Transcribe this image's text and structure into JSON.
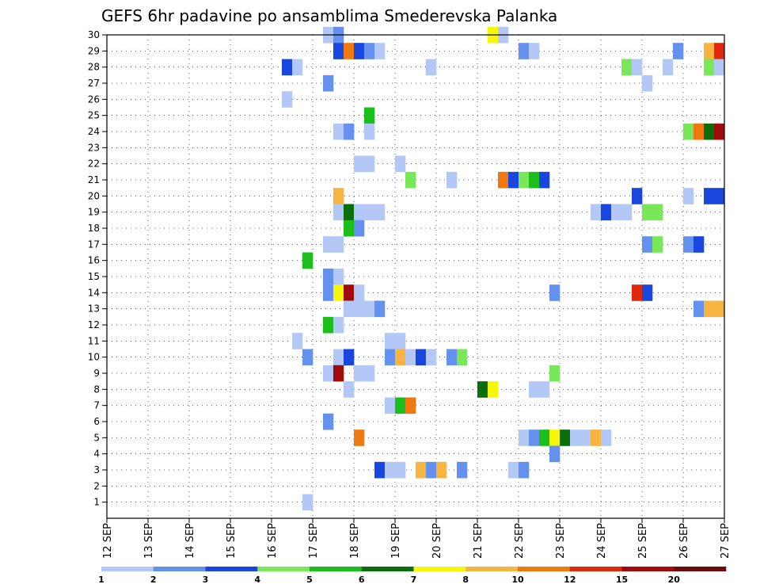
{
  "chart_data": {
    "type": "heatmap",
    "title": "GEFS 6hr padavine po ansamblima Smederevska Palanka",
    "xlabel": "",
    "ylabel": "",
    "y_range": [
      0,
      30
    ],
    "y_ticks": [
      1,
      2,
      3,
      4,
      5,
      6,
      7,
      8,
      9,
      10,
      11,
      12,
      13,
      14,
      15,
      16,
      17,
      18,
      19,
      20,
      21,
      22,
      23,
      24,
      25,
      26,
      27,
      28,
      29,
      30
    ],
    "x_range_days": [
      12,
      27
    ],
    "x_ticks": [
      "12 SEP",
      "13 SEP",
      "14 SEP",
      "15 SEP",
      "16 SEP",
      "17 SEP",
      "18 SEP",
      "19 SEP",
      "20 SEP",
      "21 SEP",
      "22 SEP",
      "23 SEP",
      "24 SEP",
      "25 SEP",
      "26 SEP",
      "27 SEP"
    ],
    "grid": true,
    "legend": {
      "placement": "bottom",
      "thresholds": [
        "1",
        "2",
        "3",
        "4",
        "5",
        "6",
        "7",
        "8",
        "10",
        "12",
        "15",
        "20"
      ],
      "colors": [
        "#b4c8f8",
        "#6490ee",
        "#1846de",
        "#78e85a",
        "#1cbe1c",
        "#0a6e0a",
        "#f6f60a",
        "#f8b440",
        "#f07810",
        "#dc2a0a",
        "#a00a0a",
        "#6e0a0a"
      ]
    },
    "cells": [
      {
        "row": 30,
        "col": 5.25,
        "level": 0
      },
      {
        "row": 30,
        "col": 5.5,
        "level": 1
      },
      {
        "row": 30,
        "col": 9.25,
        "level": 6
      },
      {
        "row": 30,
        "col": 9.5,
        "level": 0
      },
      {
        "row": 29,
        "col": 5.5,
        "level": 2
      },
      {
        "row": 29,
        "col": 5.75,
        "level": 8
      },
      {
        "row": 29,
        "col": 6,
        "level": 2
      },
      {
        "row": 29,
        "col": 6.25,
        "level": 1
      },
      {
        "row": 29,
        "col": 6.5,
        "level": 0
      },
      {
        "row": 29,
        "col": 10,
        "level": 1
      },
      {
        "row": 29,
        "col": 10.25,
        "level": 0
      },
      {
        "row": 29,
        "col": 13.75,
        "level": 1
      },
      {
        "row": 29,
        "col": 14.5,
        "level": 7
      },
      {
        "row": 29,
        "col": 14.75,
        "level": 9
      },
      {
        "row": 28,
        "col": 4.25,
        "level": 2
      },
      {
        "row": 28,
        "col": 4.5,
        "level": 0
      },
      {
        "row": 28,
        "col": 7.75,
        "level": 0
      },
      {
        "row": 28,
        "col": 12.5,
        "level": 3
      },
      {
        "row": 28,
        "col": 12.75,
        "level": 0
      },
      {
        "row": 28,
        "col": 13.5,
        "level": 0
      },
      {
        "row": 28,
        "col": 14.5,
        "level": 3
      },
      {
        "row": 28,
        "col": 14.75,
        "level": 0
      },
      {
        "row": 27,
        "col": 5.25,
        "level": 1
      },
      {
        "row": 27,
        "col": 13,
        "level": 0
      },
      {
        "row": 26,
        "col": 4.25,
        "level": 0
      },
      {
        "row": 25,
        "col": 6.25,
        "level": 4
      },
      {
        "row": 24,
        "col": 5.5,
        "level": 0
      },
      {
        "row": 24,
        "col": 5.75,
        "level": 1
      },
      {
        "row": 24,
        "col": 6.25,
        "level": 0
      },
      {
        "row": 24,
        "col": 14,
        "level": 3
      },
      {
        "row": 24,
        "col": 14.25,
        "level": 8
      },
      {
        "row": 24,
        "col": 14.5,
        "level": 5
      },
      {
        "row": 24,
        "col": 14.75,
        "level": 10
      },
      {
        "row": 22,
        "col": 6,
        "level": 0
      },
      {
        "row": 22,
        "col": 6.25,
        "level": 0
      },
      {
        "row": 22,
        "col": 7,
        "level": 0
      },
      {
        "row": 21,
        "col": 7.25,
        "level": 3
      },
      {
        "row": 21,
        "col": 8.25,
        "level": 0
      },
      {
        "row": 21,
        "col": 9.5,
        "level": 8
      },
      {
        "row": 21,
        "col": 9.75,
        "level": 2
      },
      {
        "row": 21,
        "col": 10,
        "level": 3
      },
      {
        "row": 21,
        "col": 10.25,
        "level": 4
      },
      {
        "row": 21,
        "col": 10.5,
        "level": 2
      },
      {
        "row": 20,
        "col": 5.5,
        "level": 7
      },
      {
        "row": 20,
        "col": 12.75,
        "level": 2
      },
      {
        "row": 20,
        "col": 14,
        "level": 0
      },
      {
        "row": 20,
        "col": 14.5,
        "level": 2
      },
      {
        "row": 20,
        "col": 14.75,
        "level": 2
      },
      {
        "row": 19,
        "col": 5.5,
        "level": 0
      },
      {
        "row": 19,
        "col": 5.75,
        "level": 5
      },
      {
        "row": 19,
        "col": 6,
        "level": 0
      },
      {
        "row": 19,
        "col": 6.25,
        "level": 0
      },
      {
        "row": 19,
        "col": 6.5,
        "level": 0
      },
      {
        "row": 19,
        "col": 11.75,
        "level": 0
      },
      {
        "row": 19,
        "col": 12,
        "level": 2
      },
      {
        "row": 19,
        "col": 12.25,
        "level": 0
      },
      {
        "row": 19,
        "col": 12.5,
        "level": 0
      },
      {
        "row": 19,
        "col": 13,
        "level": 3
      },
      {
        "row": 19,
        "col": 13.25,
        "level": 3
      },
      {
        "row": 18,
        "col": 5.75,
        "level": 4
      },
      {
        "row": 18,
        "col": 6,
        "level": 1
      },
      {
        "row": 17,
        "col": 5.25,
        "level": 0
      },
      {
        "row": 17,
        "col": 5.5,
        "level": 0
      },
      {
        "row": 17,
        "col": 13,
        "level": 1
      },
      {
        "row": 17,
        "col": 13.25,
        "level": 3
      },
      {
        "row": 17,
        "col": 14,
        "level": 1
      },
      {
        "row": 17,
        "col": 14.25,
        "level": 2
      },
      {
        "row": 16,
        "col": 4.75,
        "level": 4
      },
      {
        "row": 15,
        "col": 5.25,
        "level": 1
      },
      {
        "row": 15,
        "col": 5.5,
        "level": 0
      },
      {
        "row": 14,
        "col": 5.25,
        "level": 1
      },
      {
        "row": 14,
        "col": 5.5,
        "level": 6
      },
      {
        "row": 14,
        "col": 5.75,
        "level": 10
      },
      {
        "row": 14,
        "col": 6,
        "level": 0
      },
      {
        "row": 14,
        "col": 10.75,
        "level": 1
      },
      {
        "row": 14,
        "col": 12.75,
        "level": 9
      },
      {
        "row": 14,
        "col": 13,
        "level": 2
      },
      {
        "row": 13,
        "col": 5.75,
        "level": 0
      },
      {
        "row": 13,
        "col": 6,
        "level": 0
      },
      {
        "row": 13,
        "col": 6.25,
        "level": 0
      },
      {
        "row": 13,
        "col": 6.5,
        "level": 1
      },
      {
        "row": 13,
        "col": 14.25,
        "level": 1
      },
      {
        "row": 13,
        "col": 14.5,
        "level": 7
      },
      {
        "row": 13,
        "col": 14.75,
        "level": 7
      },
      {
        "row": 12,
        "col": 5.25,
        "level": 4
      },
      {
        "row": 12,
        "col": 5.5,
        "level": 0
      },
      {
        "row": 11,
        "col": 4.5,
        "level": 0
      },
      {
        "row": 11,
        "col": 6.75,
        "level": 0
      },
      {
        "row": 11,
        "col": 7,
        "level": 0
      },
      {
        "row": 10,
        "col": 4.75,
        "level": 1
      },
      {
        "row": 10,
        "col": 5.5,
        "level": 0
      },
      {
        "row": 10,
        "col": 5.75,
        "level": 2
      },
      {
        "row": 10,
        "col": 6.75,
        "level": 1
      },
      {
        "row": 10,
        "col": 7,
        "level": 7
      },
      {
        "row": 10,
        "col": 7.25,
        "level": 0
      },
      {
        "row": 10,
        "col": 7.5,
        "level": 2
      },
      {
        "row": 10,
        "col": 7.75,
        "level": 0
      },
      {
        "row": 10,
        "col": 8.25,
        "level": 1
      },
      {
        "row": 10,
        "col": 8.5,
        "level": 3
      },
      {
        "row": 9,
        "col": 5.25,
        "level": 0
      },
      {
        "row": 9,
        "col": 5.5,
        "level": 10
      },
      {
        "row": 9,
        "col": 6,
        "level": 0
      },
      {
        "row": 9,
        "col": 6.25,
        "level": 0
      },
      {
        "row": 9,
        "col": 10.75,
        "level": 3
      },
      {
        "row": 8,
        "col": 5.75,
        "level": 0
      },
      {
        "row": 8,
        "col": 9,
        "level": 5
      },
      {
        "row": 8,
        "col": 9.25,
        "level": 6
      },
      {
        "row": 8,
        "col": 10.25,
        "level": 0
      },
      {
        "row": 8,
        "col": 10.5,
        "level": 0
      },
      {
        "row": 7,
        "col": 6.75,
        "level": 0
      },
      {
        "row": 7,
        "col": 7,
        "level": 4
      },
      {
        "row": 7,
        "col": 7.25,
        "level": 8
      },
      {
        "row": 6,
        "col": 5.25,
        "level": 1
      },
      {
        "row": 5,
        "col": 6,
        "level": 8
      },
      {
        "row": 5,
        "col": 10,
        "level": 0
      },
      {
        "row": 5,
        "col": 10.25,
        "level": 1
      },
      {
        "row": 5,
        "col": 10.5,
        "level": 4
      },
      {
        "row": 5,
        "col": 10.75,
        "level": 6
      },
      {
        "row": 5,
        "col": 11,
        "level": 5
      },
      {
        "row": 5,
        "col": 11.25,
        "level": 0
      },
      {
        "row": 5,
        "col": 11.5,
        "level": 0
      },
      {
        "row": 5,
        "col": 11.75,
        "level": 7
      },
      {
        "row": 5,
        "col": 12,
        "level": 0
      },
      {
        "row": 4,
        "col": 10.75,
        "level": 1
      },
      {
        "row": 3,
        "col": 6.5,
        "level": 2
      },
      {
        "row": 3,
        "col": 6.75,
        "level": 0
      },
      {
        "row": 3,
        "col": 7,
        "level": 0
      },
      {
        "row": 3,
        "col": 7.5,
        "level": 7
      },
      {
        "row": 3,
        "col": 7.75,
        "level": 1
      },
      {
        "row": 3,
        "col": 8,
        "level": 7
      },
      {
        "row": 3,
        "col": 8.5,
        "level": 1
      },
      {
        "row": 3,
        "col": 9.75,
        "level": 0
      },
      {
        "row": 3,
        "col": 10,
        "level": 1
      },
      {
        "row": 1,
        "col": 4.75,
        "level": 0
      }
    ]
  }
}
